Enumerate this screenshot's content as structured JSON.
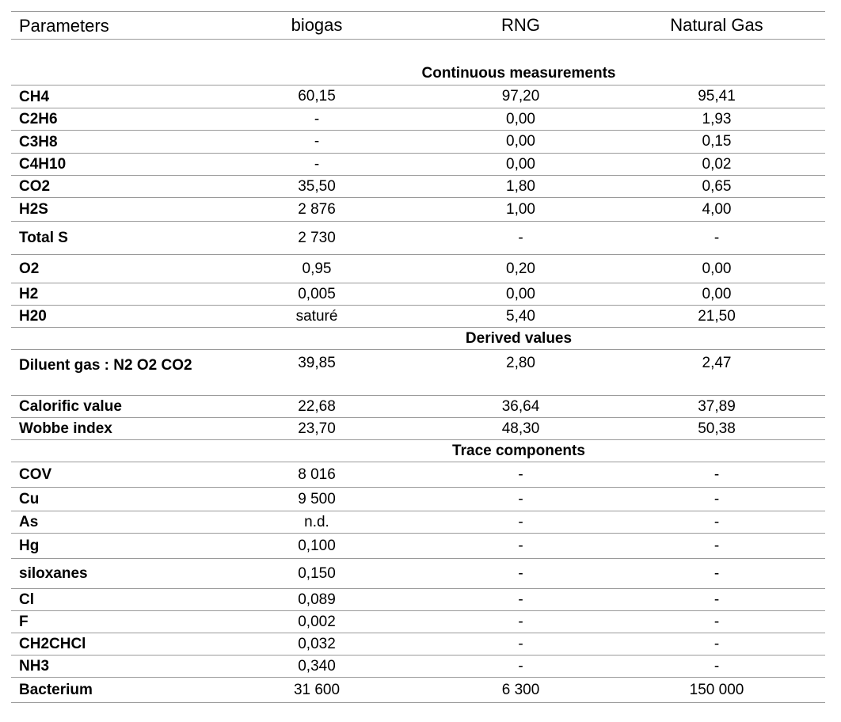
{
  "header": [
    "Parameters",
    "biogas",
    "RNG",
    "Natural Gas"
  ],
  "sections": [
    {
      "title": "Continuous measurements",
      "rows": [
        [
          "CH4",
          "60,15",
          "97,20",
          "95,41"
        ],
        [
          "C2H6",
          "-",
          "0,00",
          "1,93"
        ],
        [
          "C3H8",
          "-",
          "0,00",
          "0,15"
        ],
        [
          "C4H10",
          "-",
          "0,00",
          "0,02"
        ],
        [
          "CO2",
          "35,50",
          "1,80",
          "0,65"
        ],
        [
          "H2S",
          "2 876",
          "1,00",
          "4,00"
        ],
        [
          "Total S",
          "2 730",
          "-",
          "-"
        ],
        [
          "O2",
          "0,95",
          "0,20",
          "0,00"
        ],
        [
          "H2",
          "0,005",
          "0,00",
          "0,00"
        ],
        [
          "H20",
          "saturé",
          "5,40",
          "21,50"
        ]
      ]
    },
    {
      "title": "Derived  values",
      "rows": [
        [
          "Diluent gas : N2 O2 CO2",
          "39,85",
          "2,80",
          "2,47"
        ],
        [
          "Calorific value",
          "22,68",
          "36,64",
          "37,89"
        ],
        [
          "Wobbe index",
          "23,70",
          "48,30",
          "50,38"
        ]
      ]
    },
    {
      "title": "Trace components",
      "rows": [
        [
          "COV",
          "8 016",
          "-",
          "-"
        ],
        [
          "Cu",
          "9 500",
          "-",
          "-"
        ],
        [
          "As",
          "n.d.",
          "-",
          "-"
        ],
        [
          "Hg",
          "0,100",
          "-",
          "-"
        ],
        [
          "siloxanes",
          "0,150",
          "-",
          "-"
        ],
        [
          "Cl",
          "0,089",
          "-",
          "-"
        ],
        [
          "F",
          "0,002",
          "-",
          "-"
        ],
        [
          "CH2CHCl",
          "0,032",
          "-",
          "-"
        ],
        [
          "NH3",
          "0,340",
          "-",
          "-"
        ],
        [
          "Bacterium",
          "31 600",
          "6 300",
          "150 000"
        ]
      ]
    }
  ]
}
